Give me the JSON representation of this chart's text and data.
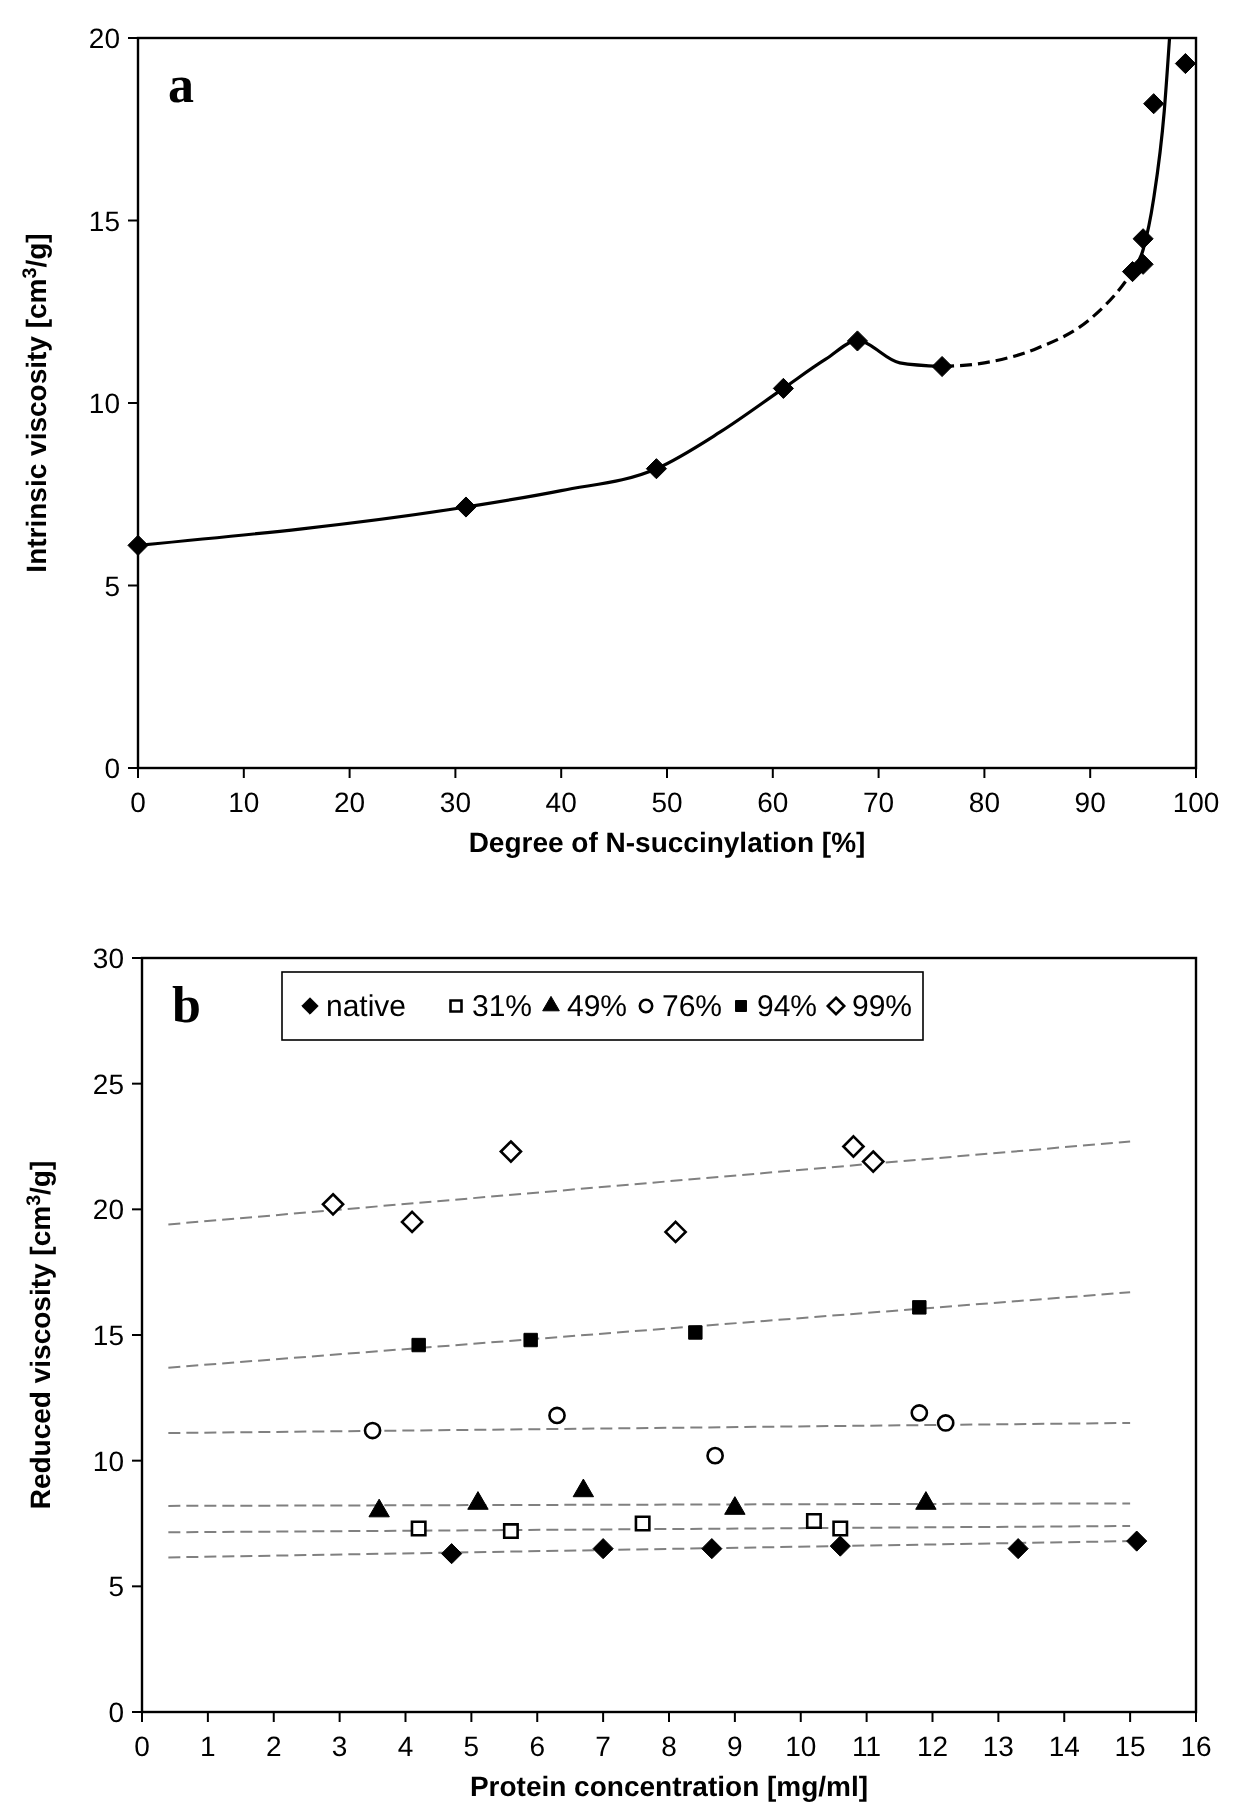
{
  "chart_data": [
    {
      "type": "scatter",
      "xlabel": "Degree of N-succinylation [%]",
      "ylabel": "Intrinsic viscosity [cm$^{3}$/g]",
      "annotations": [
        "a"
      ],
      "xlim": [
        0,
        100
      ],
      "ylim": [
        0,
        20
      ],
      "xticks": [
        0,
        10,
        20,
        30,
        40,
        50,
        60,
        70,
        80,
        90,
        100
      ],
      "yticks": [
        0,
        5,
        10,
        15,
        20
      ],
      "grid": false,
      "marker": "diamond",
      "series": [
        {
          "color": "#000000",
          "x": [
            0,
            31,
            49,
            61,
            68,
            76,
            94,
            95,
            95,
            96,
            99
          ],
          "values": [
            6.1,
            7.15,
            8.2,
            10.4,
            11.7,
            11.0,
            13.6,
            13.8,
            14.5,
            18.2,
            19.3
          ]
        },
        {
          "type": "line",
          "color": "#000000",
          "marker": "none",
          "line_style": "solid",
          "x": [
            0,
            31,
            40,
            49,
            55,
            61,
            65,
            68,
            72,
            76
          ],
          "values": [
            6.1,
            7.15,
            7.6,
            8.2,
            9.2,
            10.4,
            11.2,
            11.7,
            11.1,
            11.0
          ]
        },
        {
          "type": "line",
          "color": "#000000",
          "marker": "none",
          "line_style": "dashed",
          "x": [
            76,
            80,
            85,
            90,
            93,
            94
          ],
          "values": [
            11.0,
            11.1,
            11.5,
            12.3,
            13.2,
            13.6
          ]
        },
        {
          "type": "line",
          "color": "#000000",
          "marker": "none",
          "line_style": "solid",
          "x": [
            94,
            95,
            96,
            97,
            97.5
          ],
          "values": [
            13.6,
            14.2,
            15.6,
            18.0,
            20.0
          ]
        }
      ]
    },
    {
      "type": "scatter",
      "xlabel": "Protein concentration [mg/ml]",
      "ylabel": "Reduced viscosity [cm$^{3}$/g]",
      "annotations": [
        "b"
      ],
      "xlim": [
        0,
        16
      ],
      "ylim": [
        0,
        30
      ],
      "xticks": [
        0,
        1,
        2,
        3,
        4,
        5,
        6,
        7,
        8,
        9,
        10,
        11,
        12,
        13,
        14,
        15,
        16
      ],
      "yticks": [
        0,
        5,
        10,
        15,
        20,
        25,
        30
      ],
      "grid": false,
      "legend": "top",
      "series": [
        {
          "name": "native",
          "color": "#000000",
          "marker": "diamond",
          "x": [
            4.7,
            7,
            8.65,
            10.6,
            13.3,
            15.1
          ],
          "values": [
            6.3,
            6.5,
            6.5,
            6.6,
            6.5,
            6.8
          ]
        },
        {
          "name": "31%",
          "color": "#ffffff",
          "marker": "square",
          "x": [
            4.2,
            5.6,
            7.6,
            10.2,
            10.6
          ],
          "values": [
            7.3,
            7.2,
            7.5,
            7.6,
            7.3
          ]
        },
        {
          "name": "49%",
          "color": "#000000",
          "marker": "triangle",
          "x": [
            3.6,
            5.1,
            6.7,
            9,
            11.9
          ],
          "values": [
            8.0,
            8.3,
            8.8,
            8.1,
            8.3
          ]
        },
        {
          "name": "76%",
          "color": "#ffffff",
          "marker": "circle",
          "x": [
            3.5,
            6.3,
            8.7,
            11.8,
            12.2
          ],
          "values": [
            11.2,
            11.8,
            10.2,
            11.9,
            11.5
          ]
        },
        {
          "name": "94%",
          "color": "#000000",
          "marker": "square",
          "x": [
            4.2,
            5.9,
            8.4,
            11.8
          ],
          "values": [
            14.6,
            14.8,
            15.1,
            16.1
          ]
        },
        {
          "name": "99%",
          "color": "#ffffff",
          "marker": "diamond",
          "x": [
            2.9,
            4.1,
            5.6,
            8.1,
            10.8,
            11.1
          ],
          "values": [
            20.2,
            19.5,
            22.3,
            19.1,
            22.5,
            21.9
          ]
        },
        {
          "type": "line",
          "color": "#808080",
          "marker": "none",
          "line_style": "dashed",
          "x": [
            0.4,
            15
          ],
          "values": [
            19.4,
            22.7
          ]
        },
        {
          "type": "line",
          "color": "#808080",
          "marker": "none",
          "line_style": "dashed",
          "x": [
            0.4,
            15
          ],
          "values": [
            13.7,
            16.7
          ]
        },
        {
          "type": "line",
          "color": "#808080",
          "marker": "none",
          "line_style": "dashed",
          "x": [
            0.4,
            15
          ],
          "values": [
            11.1,
            11.5
          ]
        },
        {
          "type": "line",
          "color": "#808080",
          "marker": "none",
          "line_style": "dashed",
          "x": [
            0.4,
            15
          ],
          "values": [
            8.2,
            8.3
          ]
        },
        {
          "type": "line",
          "color": "#808080",
          "marker": "none",
          "line_style": "dashed",
          "x": [
            0.4,
            15
          ],
          "values": [
            7.15,
            7.4
          ]
        },
        {
          "type": "line",
          "color": "#808080",
          "marker": "none",
          "line_style": "dashed",
          "x": [
            0.4,
            15
          ],
          "values": [
            6.15,
            6.8
          ]
        }
      ]
    }
  ]
}
